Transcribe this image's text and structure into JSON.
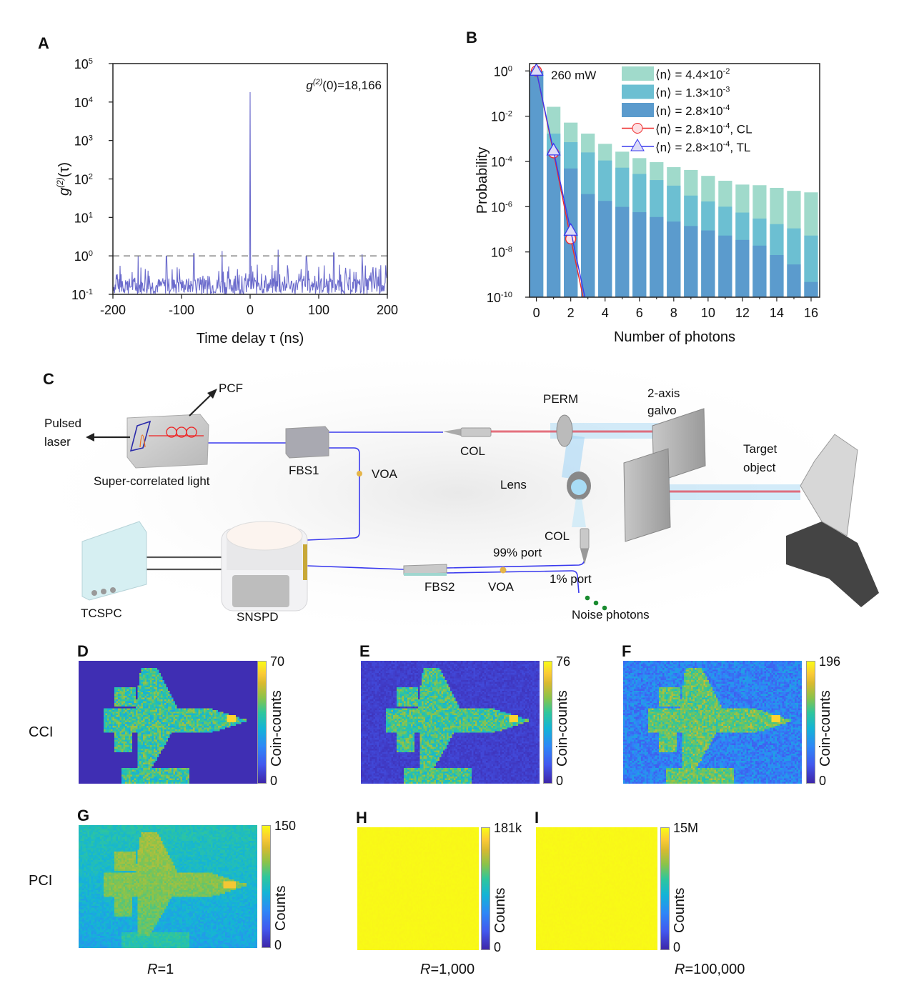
{
  "chart_data": [
    {
      "panel": "A",
      "type": "line",
      "title": "",
      "xlabel": "Time delay τ (ns)",
      "ylabel": "g(2)(τ)",
      "xlim": [
        -200,
        200
      ],
      "ylim": [
        0.1,
        100000
      ],
      "yscale": "log",
      "xticks": [
        "-200",
        "-100",
        "0",
        "100",
        "200"
      ],
      "yticks": [
        "10^-1",
        "10^0",
        "10^1",
        "10^2",
        "10^3",
        "10^4",
        "10^5"
      ],
      "annotation": "g(2)(0)=18,166",
      "reference_line": {
        "y": 1,
        "style": "dashed"
      },
      "series": [
        {
          "name": "g2",
          "color": "#6b6bcc",
          "peak": {
            "x": 0,
            "y": 18166
          },
          "side_peaks": [
            {
              "x": -163,
              "y": 1.0
            },
            {
              "x": -122,
              "y": 0.98
            },
            {
              "x": -82,
              "y": 1.15
            },
            {
              "x": -41,
              "y": 1.35
            },
            {
              "x": 41,
              "y": 1.45
            },
            {
              "x": 82,
              "y": 0.98
            },
            {
              "x": 122,
              "y": 1.2
            },
            {
              "x": 163,
              "y": 1.1
            }
          ],
          "noise_floor": {
            "min": 0.1,
            "max": 0.6
          }
        }
      ]
    },
    {
      "panel": "B",
      "type": "bar",
      "title": "",
      "xlabel": "Number of photons",
      "ylabel": "Probability",
      "yscale": "log",
      "ylim": [
        1e-10,
        1.5
      ],
      "xlim": [
        -0.4,
        16.5
      ],
      "xticks": [
        "0",
        "2",
        "4",
        "6",
        "8",
        "10",
        "12",
        "14",
        "16"
      ],
      "yticks": [
        "10^-10",
        "10^-8",
        "10^-6",
        "10^-4",
        "10^-2",
        "10^0"
      ],
      "annotation": "260 mW",
      "legend_position": "top-right",
      "categories": [
        0,
        1,
        2,
        3,
        4,
        5,
        6,
        7,
        8,
        9,
        10,
        11,
        12,
        13,
        14,
        15,
        16
      ],
      "series": [
        {
          "name": "⟨n⟩ = 4.4×10^-2",
          "color": "#a0dacb",
          "values": [
            1.0,
            0.026,
            0.0052,
            0.0017,
            0.0006,
            0.00027,
            0.00014,
            9.3e-05,
            5.6e-05,
            4.2e-05,
            2.3e-05,
            1.4e-05,
            9.5e-06,
            8.9e-06,
            6.8e-06,
            5e-06,
            4.3e-06
          ]
        },
        {
          "name": "⟨n⟩ = 1.3×10^-3",
          "color": "#6cbfd2",
          "values": [
            1.0,
            0.0017,
            0.00071,
            0.00025,
            0.00011,
            5.3e-05,
            2.8e-05,
            1.5e-05,
            8.5e-06,
            3.1e-06,
            1.7e-06,
            1e-06,
            5.5e-07,
            3e-07,
            1.7e-07,
            1.1e-07,
            5.3e-08
          ]
        },
        {
          "name": "⟨n⟩ = 2.8×10^-4",
          "color": "#5b9bcd",
          "values": [
            1.0,
            0.00028,
            4.9e-05,
            3.6e-06,
            1.8e-06,
            9.8e-07,
            5.7e-07,
            3.5e-07,
            2.2e-07,
            1.4e-07,
            8.9e-08,
            5.3e-08,
            3.4e-08,
            1.9e-08,
            7.3e-09,
            2.8e-09,
            4.7e-10
          ]
        }
      ],
      "lines": [
        {
          "name": "⟨n⟩ = 2.8×10^-4, CL",
          "color": "#ee2a2a",
          "marker": "circle",
          "x": [
            0,
            1,
            2,
            2.72
          ],
          "y": [
            1.0,
            0.00024,
            3.8e-08,
            1e-10
          ]
        },
        {
          "name": "⟨n⟩ = 2.8×10^-4, TL",
          "color": "#3b3bee",
          "marker": "triangle",
          "x": [
            0,
            1,
            2,
            2.82
          ],
          "y": [
            1.0,
            0.0003,
            8.5e-08,
            1e-10
          ]
        }
      ],
      "legend": [
        {
          "label": "⟨n⟩ = 4.4×10",
          "exp": "-2",
          "kind": "patch",
          "color": "#a0dacb"
        },
        {
          "label": "⟨n⟩ = 1.3×10",
          "exp": "-3",
          "kind": "patch",
          "color": "#6cbfd2"
        },
        {
          "label": "⟨n⟩ = 2.8×10",
          "exp": "-4",
          "kind": "patch",
          "color": "#5b9bcd"
        },
        {
          "label": "⟨n⟩ = 2.8×10",
          "exp": "-4",
          "suffix": ", CL",
          "kind": "circle",
          "color": "#ee2a2a"
        },
        {
          "label": "⟨n⟩ = 2.8×10",
          "exp": "-4",
          "suffix": ", TL",
          "kind": "triangle",
          "color": "#3b3bee"
        }
      ]
    }
  ],
  "panels": {
    "A": "A",
    "B": "B",
    "C": "C",
    "D": "D",
    "E": "E",
    "F": "F",
    "G": "G",
    "H": "H",
    "I": "I"
  },
  "panelA": {
    "annotation_main": "g",
    "annotation_sup": "(2)",
    "annotation_rest": "(0)=18,166",
    "ylabel_main": "g",
    "ylabel_sup": "(2)",
    "ylabel_rest": "(τ)",
    "xlabel": "Time delay τ (ns)"
  },
  "setup": {
    "labels": {
      "pcf": "PCF",
      "pulsed_laser_1": "Pulsed",
      "pulsed_laser_2": "laser",
      "super_correlated": "Super-correlated light",
      "fbs1": "FBS1",
      "voa1": "VOA",
      "col1": "COL",
      "perm": "PERM",
      "galvo_1": "2-axis",
      "galvo_2": "galvo",
      "target_1": "Target",
      "target_2": "object",
      "lens": "Lens",
      "col2": "COL",
      "port99": "99% port",
      "port1": "1% port",
      "noise": "Noise photons",
      "tcspc": "TCSPC",
      "snspd": "SNSPD",
      "fbs2": "FBS2",
      "voa2": "VOA"
    }
  },
  "images": {
    "row_labels": {
      "cci": "CCI",
      "pci": "PCI"
    },
    "panels": [
      {
        "id": "D",
        "cbar_title": "Coin-counts",
        "cbar_max": "70",
        "cbar_min": "0",
        "kind": "cci",
        "noise": 0.05
      },
      {
        "id": "E",
        "cbar_title": "Coin-counts",
        "cbar_max": "76",
        "cbar_min": "0",
        "kind": "cci",
        "noise": 0.15
      },
      {
        "id": "F",
        "cbar_title": "Coin-counts",
        "cbar_max": "196",
        "cbar_min": "0",
        "kind": "cci",
        "noise": 0.55
      },
      {
        "id": "G",
        "cbar_title": "Counts",
        "cbar_max": "150",
        "cbar_min": "0",
        "kind": "pci",
        "noise": 0.3
      },
      {
        "id": "H",
        "cbar_title": "Counts",
        "cbar_max": "181k",
        "cbar_min": "0",
        "kind": "sat"
      },
      {
        "id": "I",
        "cbar_title": "Counts",
        "cbar_max": "15M",
        "cbar_min": "0",
        "kind": "sat"
      }
    ],
    "captions": [
      {
        "var": "R",
        "value": "=1"
      },
      {
        "var": "R",
        "value": "=1,000"
      },
      {
        "var": "R",
        "value": "=100,000"
      }
    ]
  }
}
